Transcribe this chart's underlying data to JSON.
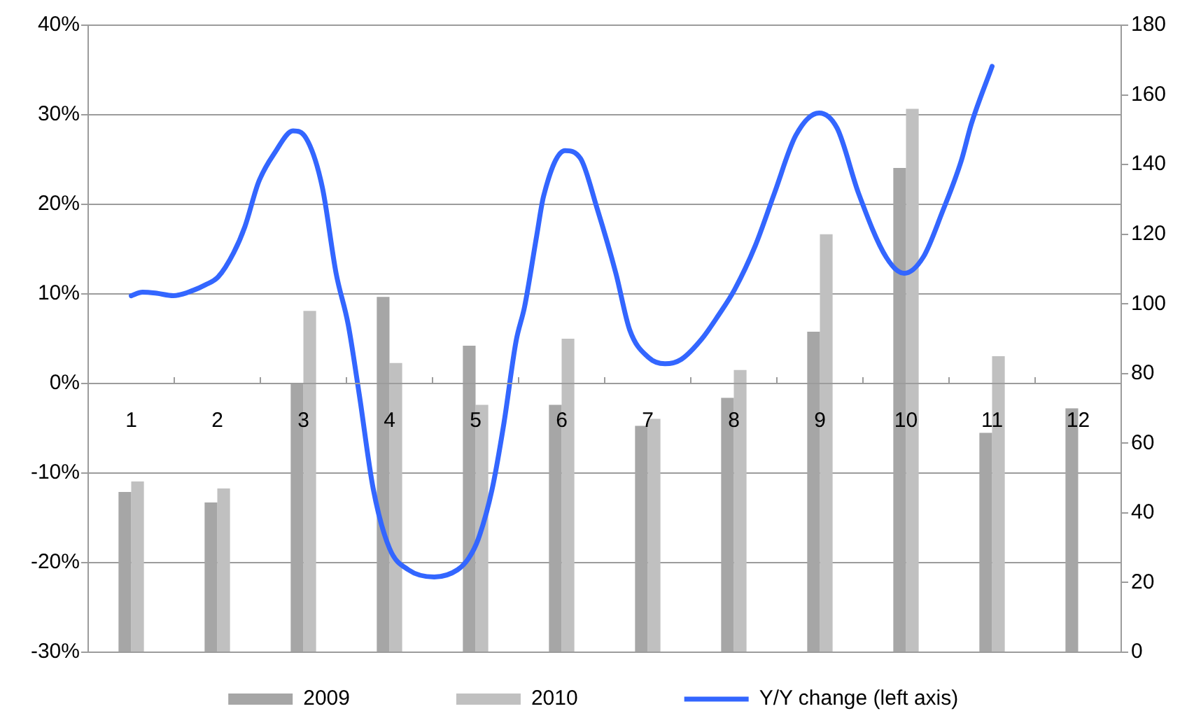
{
  "chart_data": {
    "type": "bar",
    "x": [
      1,
      2,
      3,
      4,
      5,
      6,
      7,
      8,
      9,
      10,
      11,
      12
    ],
    "series": [
      {
        "name": "2009",
        "color": "#a6a6a6",
        "axis": "y2",
        "values": [
          46,
          43,
          77,
          102,
          88,
          71,
          65,
          73,
          92,
          139,
          63,
          70
        ]
      },
      {
        "name": "2010",
        "color": "#c0c0c0",
        "axis": "y2",
        "values": [
          49,
          47,
          98,
          83,
          71,
          90,
          67,
          81,
          120,
          156,
          85,
          null
        ]
      },
      {
        "name": "Y/Y change (left axis)",
        "type": "line",
        "color": "#3366ff",
        "x": [
          1.0,
          1.13,
          1.28,
          1.49,
          1.72,
          1.86,
          2.01,
          2.19,
          2.32,
          2.48,
          2.67,
          2.88,
          3.03,
          3.22,
          3.38,
          3.52,
          3.65,
          3.81,
          4.0,
          4.22,
          4.52,
          4.79,
          4.92,
          5.03,
          5.19,
          5.33,
          5.47,
          5.57,
          5.71,
          5.79,
          6.04,
          6.22,
          6.41,
          6.63,
          6.79,
          7.01,
          7.2,
          7.39,
          7.63,
          7.82,
          8.01,
          8.25,
          8.47,
          8.72,
          8.99,
          9.2,
          9.45,
          9.77,
          9.98,
          10.2,
          10.42,
          10.64,
          10.76,
          11.0
        ],
        "values": [
          9.8,
          10.2,
          10.1,
          9.8,
          10.4,
          11.0,
          11.9,
          14.6,
          17.5,
          22.5,
          25.8,
          28.2,
          27.4,
          21.9,
          12.3,
          6.6,
          -1.3,
          -11.7,
          -18.4,
          -20.8,
          -21.6,
          -20.8,
          -19.5,
          -17.4,
          -11.9,
          -4.4,
          4.7,
          8.6,
          16.5,
          20.9,
          26.0,
          25.1,
          19.6,
          12.3,
          6.0,
          2.9,
          2.2,
          2.7,
          5.0,
          7.6,
          10.5,
          15.4,
          21.2,
          27.7,
          30.2,
          28.5,
          21.2,
          14.1,
          12.3,
          14.1,
          19.1,
          24.8,
          29.0,
          35.4
        ]
      }
    ],
    "xlim": [
      0.5,
      12.5
    ],
    "xticks": [
      {
        "value": 0.5,
        "label": null
      },
      1,
      {
        "value": 1.5,
        "label": null
      },
      2,
      {
        "value": 2.5,
        "label": null
      },
      3,
      {
        "value": 3.5,
        "label": null
      },
      4,
      {
        "value": 4.5,
        "label": null
      },
      5,
      {
        "value": 5.5,
        "label": null
      },
      6,
      {
        "value": 6.5,
        "label": null
      },
      7,
      {
        "value": 7.5,
        "label": null
      },
      8,
      {
        "value": 8.5,
        "label": null
      },
      9,
      {
        "value": 9.5,
        "label": null
      },
      10,
      {
        "value": 10.5,
        "label": null
      },
      11,
      {
        "value": 11.5,
        "label": null
      },
      12,
      {
        "value": 12.5,
        "label": null
      }
    ],
    "ylim": [
      -30,
      40
    ],
    "yticks": [
      {
        "value": -30,
        "label": "-30%"
      },
      {
        "value": -20,
        "label": "-20%"
      },
      {
        "value": -10,
        "label": "-10%"
      },
      {
        "value": 0,
        "label": "0%"
      },
      {
        "value": 10,
        "label": "10%"
      },
      {
        "value": 20,
        "label": "20%"
      },
      {
        "value": 30,
        "label": "30%"
      },
      {
        "value": 40,
        "label": "40%"
      }
    ],
    "y2lim": [
      0,
      180
    ],
    "y2ticks": [
      0,
      20,
      40,
      60,
      80,
      100,
      120,
      140,
      160,
      180
    ],
    "grid": "y",
    "legend": "bottom",
    "marker": "none"
  }
}
